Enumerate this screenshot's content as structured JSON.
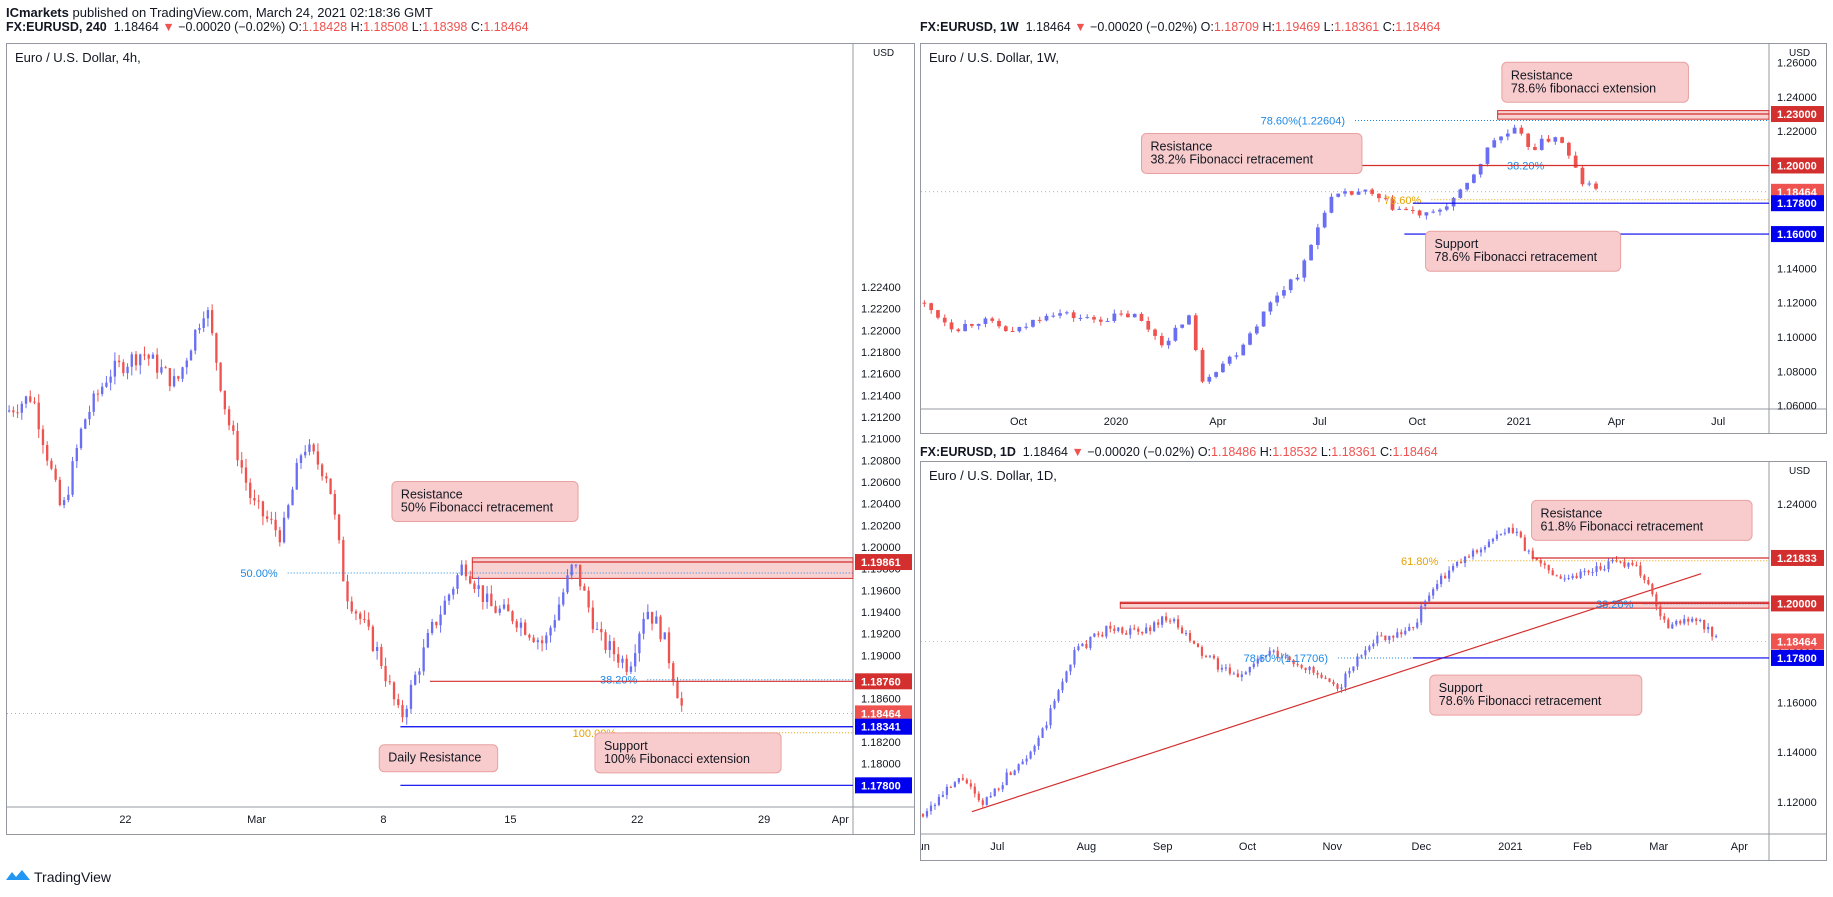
{
  "publisher": {
    "name": "ICmarkets",
    "text": "published on TradingView.com, March 24, 2021 02:18:36 GMT"
  },
  "brand": "TradingView",
  "colors": {
    "up": "#6a6ef2",
    "down": "#ef5350",
    "resistance": "#d32f2f",
    "support": "#0000ee",
    "zone_fill": "#f7c9c9",
    "fib_blue": "#1e88e5",
    "fib_orange": "#e6a100"
  },
  "chart_data": [
    {
      "id": "4h",
      "type": "candlestick",
      "header": {
        "symbol": "FX:EURUSD, 240",
        "price": "1.18464",
        "change": "−0.00020 (−0.02%)",
        "O": "1.18428",
        "H": "1.18508",
        "L": "1.18398",
        "C": "1.18464"
      },
      "title": "Euro / U.S. Dollar, 4h,",
      "currency": "USD",
      "ylim": [
        1.176,
        1.2455
      ],
      "y_ticks": [
        "1.22400",
        "1.22200",
        "1.22000",
        "1.21800",
        "1.21600",
        "1.21400",
        "1.21200",
        "1.21000",
        "1.20800",
        "1.20600",
        "1.20400",
        "1.20200",
        "1.20000",
        "1.19800",
        "1.19600",
        "1.19400",
        "1.19200",
        "1.19000",
        "1.18800",
        "1.18600",
        "1.18400",
        "1.18200",
        "1.18000",
        "1.17800"
      ],
      "x_ticks": [
        "22",
        "Mar",
        "8",
        "15",
        "22",
        "29",
        "Apr"
      ],
      "x_tick_pos": [
        0.14,
        0.295,
        0.445,
        0.595,
        0.745,
        0.895,
        0.985
      ],
      "path": [
        [
          0,
          1.2125
        ],
        [
          0.03,
          1.214
        ],
        [
          0.065,
          1.203
        ],
        [
          0.09,
          1.2115
        ],
        [
          0.12,
          1.216
        ],
        [
          0.16,
          1.218
        ],
        [
          0.2,
          1.215
        ],
        [
          0.235,
          1.2225
        ],
        [
          0.26,
          1.212
        ],
        [
          0.29,
          1.204
        ],
        [
          0.325,
          1.201
        ],
        [
          0.35,
          1.2095
        ],
        [
          0.38,
          1.2065
        ],
        [
          0.4,
          1.196
        ],
        [
          0.44,
          1.19
        ],
        [
          0.465,
          1.184
        ],
        [
          0.5,
          1.192
        ],
        [
          0.54,
          1.1985
        ],
        [
          0.57,
          1.1945
        ],
        [
          0.6,
          1.1935
        ],
        [
          0.635,
          1.191
        ],
        [
          0.67,
          1.1985
        ],
        [
          0.7,
          1.1915
        ],
        [
          0.735,
          1.189
        ],
        [
          0.755,
          1.1945
        ],
        [
          0.775,
          1.192
        ],
        [
          0.8,
          1.1845
        ]
      ],
      "levels": [
        {
          "price": 1.19861,
          "label": "1.19861",
          "kind": "resistance",
          "from": 0.55
        },
        {
          "price": 1.1876,
          "label": "1.18760",
          "kind": "resistance",
          "from": 0.5
        },
        {
          "price": 1.18464,
          "label": "1.18464",
          "kind": "current"
        },
        {
          "price": 1.18341,
          "label": "1.18341",
          "kind": "support",
          "from": 0.465
        },
        {
          "price": 1.178,
          "label": "1.17800",
          "kind": "support",
          "from": 0.465
        }
      ],
      "zone": {
        "top": 1.199,
        "bottom": 1.1971,
        "from": 0.55
      },
      "fib_labels": [
        {
          "text": "50.00%",
          "price": 1.1976,
          "x": 0.32,
          "kind": "blue"
        },
        {
          "text": "38.20%",
          "price": 1.18775,
          "x": 0.745,
          "kind": "blue"
        },
        {
          "text": "100.00%",
          "price": 1.18285,
          "x": 0.72,
          "kind": "orange"
        }
      ],
      "callouts": [
        {
          "lines": [
            "Resistance",
            "50% Fibonacci retracement"
          ],
          "x": 0.455,
          "price": 1.2042,
          "w": 0.22
        },
        {
          "lines": [
            "Daily Resistance"
          ],
          "x": 0.44,
          "price": 1.1805,
          "w": 0.14
        },
        {
          "lines": [
            "Support",
            "100% Fibonacci extension"
          ],
          "x": 0.695,
          "price": 1.181,
          "w": 0.22
        }
      ]
    },
    {
      "id": "1w",
      "type": "candlestick",
      "header": {
        "symbol": "FX:EURUSD, 1W",
        "price": "1.18464",
        "change": "−0.00020 (−0.02%)",
        "O": "1.18709",
        "H": "1.19469",
        "L": "1.18361",
        "C": "1.18464"
      },
      "title": "Euro / U.S. Dollar, 1W,",
      "currency": "USD",
      "ylim": [
        1.058,
        1.265
      ],
      "y_ticks": [
        "1.26000",
        "1.24000",
        "1.22000",
        "1.20000",
        "1.18000",
        "1.16000",
        "1.14000",
        "1.12000",
        "1.10000",
        "1.08000",
        "1.06000"
      ],
      "x_ticks": [
        "Oct",
        "2020",
        "Apr",
        "Jul",
        "Oct",
        "2021",
        "Apr",
        "Jul"
      ],
      "x_tick_pos": [
        0.115,
        0.23,
        0.35,
        0.47,
        0.585,
        0.705,
        0.82,
        0.94
      ],
      "path": [
        [
          0,
          1.12
        ],
        [
          0.04,
          1.105
        ],
        [
          0.07,
          1.11
        ],
        [
          0.11,
          1.102
        ],
        [
          0.15,
          1.115
        ],
        [
          0.2,
          1.11
        ],
        [
          0.25,
          1.113
        ],
        [
          0.29,
          1.095
        ],
        [
          0.315,
          1.115
        ],
        [
          0.33,
          1.075
        ],
        [
          0.37,
          1.09
        ],
        [
          0.42,
          1.125
        ],
        [
          0.45,
          1.14
        ],
        [
          0.48,
          1.18
        ],
        [
          0.52,
          1.185
        ],
        [
          0.56,
          1.175
        ],
        [
          0.6,
          1.17
        ],
        [
          0.64,
          1.185
        ],
        [
          0.675,
          1.215
        ],
        [
          0.7,
          1.22
        ],
        [
          0.72,
          1.21
        ],
        [
          0.75,
          1.218
        ],
        [
          0.78,
          1.19
        ],
        [
          0.8,
          1.1846
        ]
      ],
      "levels": [
        {
          "price": 1.23,
          "label": "1.23000",
          "kind": "resistance",
          "from": 0.68
        },
        {
          "price": 1.2,
          "label": "1.20000",
          "kind": "resistance",
          "from": 0.5
        },
        {
          "price": 1.18464,
          "label": "1.18464",
          "kind": "current"
        },
        {
          "price": 1.178,
          "label": "1.17800",
          "kind": "support",
          "from": 0.58
        },
        {
          "price": 1.16,
          "label": "1.16000",
          "kind": "support",
          "from": 0.57
        }
      ],
      "zone": {
        "top": 1.232,
        "bottom": 1.227,
        "from": 0.68
      },
      "fib_labels": [
        {
          "text": "78.60%(1.22604)",
          "price": 1.2262,
          "x": 0.5,
          "kind": "blue"
        },
        {
          "text": "38.20%",
          "price": 1.2,
          "x": 0.735,
          "kind": "blue"
        },
        {
          "text": "78.60%",
          "price": 1.18,
          "x": 0.59,
          "kind": "orange"
        }
      ],
      "callouts": [
        {
          "lines": [
            "Resistance",
            "78.6% fibonacci extension"
          ],
          "x": 0.685,
          "price": 1.2485,
          "w": 0.22
        },
        {
          "lines": [
            "Resistance",
            "38.2% Fibonacci retracement"
          ],
          "x": 0.26,
          "price": 1.207,
          "w": 0.26
        },
        {
          "lines": [
            "Support",
            "78.6% Fibonacci retracement"
          ],
          "x": 0.595,
          "price": 1.15,
          "w": 0.23
        }
      ]
    },
    {
      "id": "1d",
      "type": "candlestick",
      "header": {
        "symbol": "FX:EURUSD, 1D",
        "price": "1.18464",
        "change": "−0.00020 (−0.02%)",
        "O": "1.18486",
        "H": "1.18532",
        "L": "1.18361",
        "C": "1.18464"
      },
      "title": "Euro / U.S. Dollar, 1D,",
      "currency": "USD",
      "ylim": [
        1.107,
        1.253
      ],
      "y_ticks": [
        "USD",
        "1.24000",
        "1.22000",
        "1.20000",
        "1.18000",
        "1.16000",
        "1.14000",
        "1.12000"
      ],
      "x_ticks": [
        "Jun",
        "Jul",
        "Aug",
        "Sep",
        "Oct",
        "Nov",
        "Dec",
        "2021",
        "Feb",
        "Mar",
        "Apr"
      ],
      "x_tick_pos": [
        0.0,
        0.09,
        0.195,
        0.285,
        0.385,
        0.485,
        0.59,
        0.695,
        0.78,
        0.87,
        0.965
      ],
      "path": [
        [
          0,
          1.115
        ],
        [
          0.05,
          1.13
        ],
        [
          0.07,
          1.118
        ],
        [
          0.1,
          1.13
        ],
        [
          0.14,
          1.145
        ],
        [
          0.18,
          1.18
        ],
        [
          0.22,
          1.19
        ],
        [
          0.26,
          1.188
        ],
        [
          0.29,
          1.195
        ],
        [
          0.33,
          1.18
        ],
        [
          0.37,
          1.17
        ],
        [
          0.41,
          1.18
        ],
        [
          0.45,
          1.175
        ],
        [
          0.49,
          1.165
        ],
        [
          0.53,
          1.185
        ],
        [
          0.58,
          1.19
        ],
        [
          0.6,
          1.205
        ],
        [
          0.63,
          1.215
        ],
        [
          0.67,
          1.225
        ],
        [
          0.7,
          1.23
        ],
        [
          0.72,
          1.218
        ],
        [
          0.76,
          1.21
        ],
        [
          0.8,
          1.215
        ],
        [
          0.84,
          1.217
        ],
        [
          0.86,
          1.205
        ],
        [
          0.88,
          1.19
        ],
        [
          0.91,
          1.195
        ],
        [
          0.94,
          1.1846
        ]
      ],
      "levels": [
        {
          "price": 1.21833,
          "label": "1.21833",
          "kind": "resistance",
          "from": 0.72
        },
        {
          "price": 1.2,
          "label": "1.20000",
          "kind": "resistance",
          "from": 0.235
        },
        {
          "price": 1.18464,
          "label": "1.18464",
          "kind": "current"
        },
        {
          "price": 1.178,
          "label": "1.17800",
          "kind": "support",
          "from": 0.58
        }
      ],
      "zone": {
        "top": 1.2005,
        "bottom": 1.1985,
        "from": 0.235
      },
      "trendline": [
        [
          0.06,
          1.116
        ],
        [
          0.92,
          1.212
        ]
      ],
      "fib_labels": [
        {
          "text": "61.80%",
          "price": 1.2172,
          "x": 0.61,
          "kind": "orange"
        },
        {
          "text": "38.20%",
          "price": 1.1998,
          "x": 0.84,
          "kind": "blue"
        },
        {
          "text": "78.60%(1.17706)",
          "price": 1.178,
          "x": 0.48,
          "kind": "blue"
        }
      ],
      "callouts": [
        {
          "lines": [
            "Resistance",
            "61.8% Fibonacci retracement"
          ],
          "x": 0.72,
          "price": 1.2335,
          "w": 0.26
        },
        {
          "lines": [
            "Support",
            "78.6% Fibonacci retracement"
          ],
          "x": 0.6,
          "price": 1.163,
          "w": 0.25
        }
      ]
    }
  ]
}
